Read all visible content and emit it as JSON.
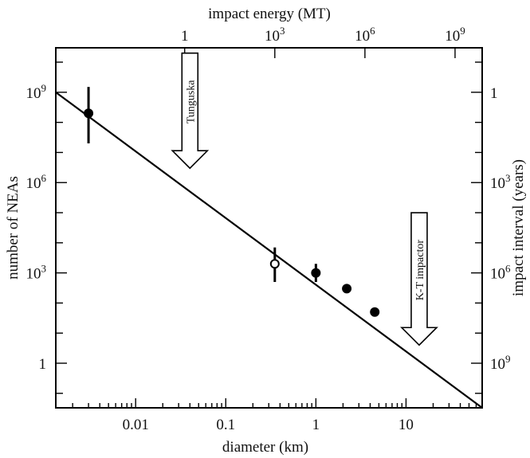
{
  "chart_data": {
    "type": "scatter",
    "title": "",
    "x_bottom": {
      "label": "diameter (km)",
      "scale": "log",
      "range_km": [
        0.0013,
        70
      ],
      "ticks": [
        {
          "value": 0.01,
          "label": "0.01"
        },
        {
          "value": 0.1,
          "label": "0.1"
        },
        {
          "value": 1,
          "label": "1"
        },
        {
          "value": 10,
          "label": "10"
        }
      ]
    },
    "x_top": {
      "label": "impact energy (MT)",
      "scale": "log",
      "ticks": [
        {
          "value": 1,
          "base": "1",
          "exp": ""
        },
        {
          "value": 1000,
          "base": "10",
          "exp": "3"
        },
        {
          "value": 1000000,
          "base": "10",
          "exp": "6"
        },
        {
          "value": 1000000000,
          "base": "10",
          "exp": "9"
        }
      ]
    },
    "y_left": {
      "label": "number of NEAs",
      "scale": "log",
      "range": [
        0.033,
        30000000000
      ],
      "ticks": [
        {
          "value": 1,
          "base": "1",
          "exp": ""
        },
        {
          "value": 1000,
          "base": "10",
          "exp": "3"
        },
        {
          "value": 1000000,
          "base": "10",
          "exp": "6"
        },
        {
          "value": 1000000000,
          "base": "10",
          "exp": "9"
        }
      ]
    },
    "y_right": {
      "label": "impact interval (years)",
      "scale": "log",
      "ticks": [
        {
          "value": 1,
          "base": "1",
          "exp": ""
        },
        {
          "value": 1000,
          "base": "10",
          "exp": "3"
        },
        {
          "value": 1000000,
          "base": "10",
          "exp": "6"
        },
        {
          "value": 1000000000,
          "base": "10",
          "exp": "9"
        }
      ]
    },
    "fit_line": {
      "start": {
        "x": 0.0013,
        "y": 1000000000
      },
      "end": {
        "x": 70,
        "y": 0.033
      }
    },
    "points": [
      {
        "x": 0.003,
        "y": 200000000,
        "y_low": 20000000,
        "y_high": 1500000000,
        "filled": true
      },
      {
        "x": 0.35,
        "y": 2000,
        "y_low": 500,
        "y_high": 7000,
        "filled": false
      },
      {
        "x": 1.0,
        "y": 1000,
        "y_low": 500,
        "y_high": 2000,
        "filled": true
      },
      {
        "x": 2.2,
        "y": 300,
        "y_low": null,
        "y_high": null,
        "filled": true
      },
      {
        "x": 4.5,
        "y": 50,
        "y_low": null,
        "y_high": null,
        "filled": true
      }
    ],
    "annotations": [
      {
        "text": "Tunguska",
        "x": 0.04,
        "y_top": 20000000000,
        "y_tip": 3000000
      },
      {
        "text": "K-T impactor",
        "x": 14,
        "y_top": 100000,
        "y_tip": 4
      }
    ],
    "grid": false,
    "legend": "none"
  }
}
